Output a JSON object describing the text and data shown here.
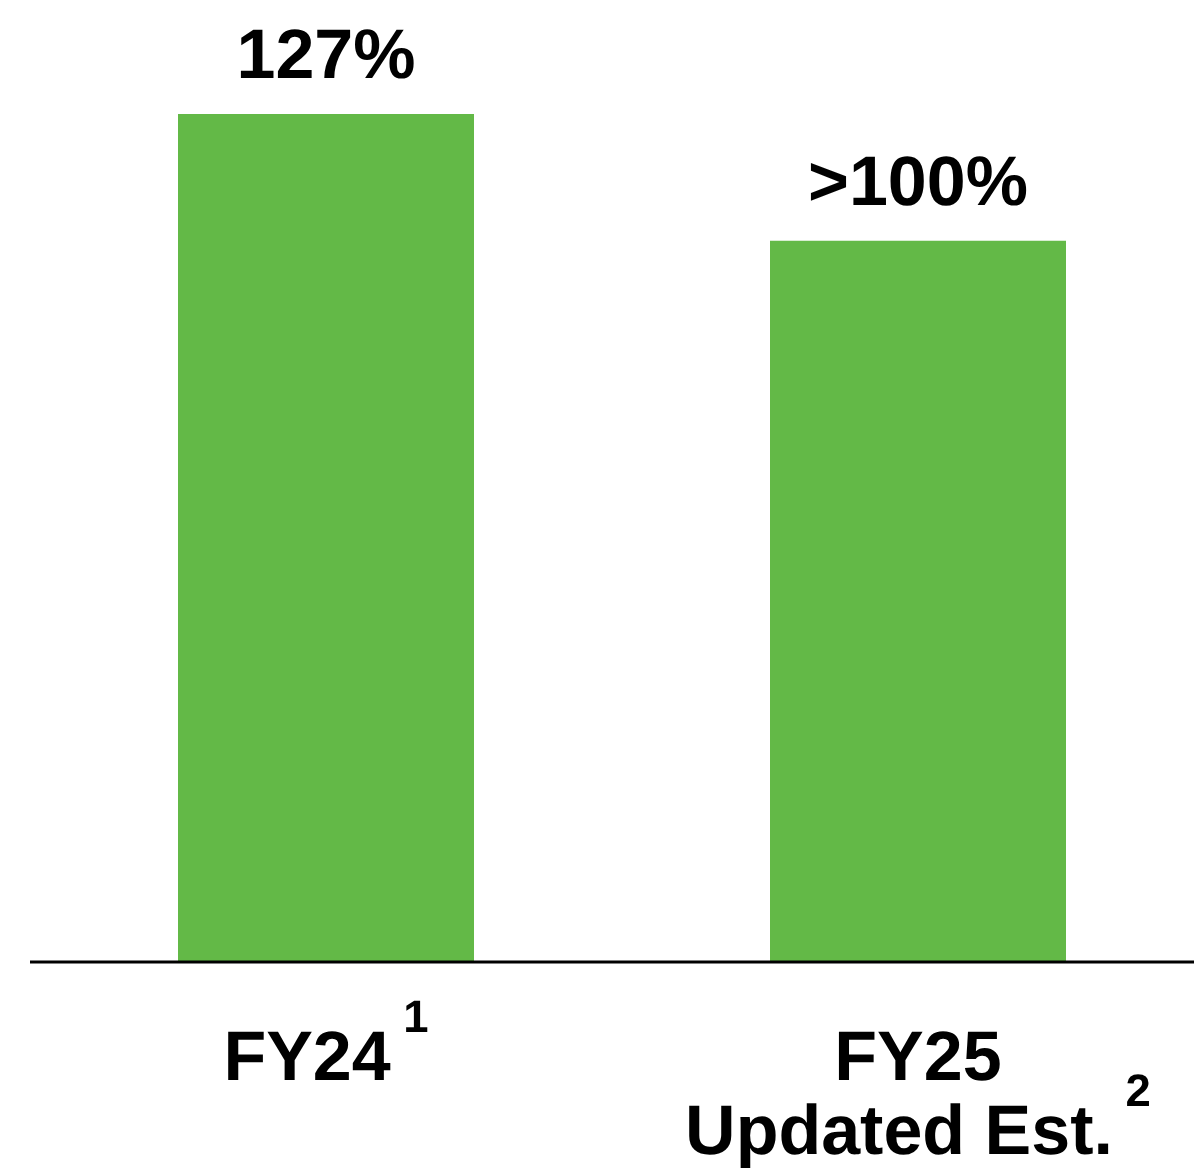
{
  "chart_data": {
    "type": "bar",
    "categories": [
      "FY24$^{1}$",
      "FY25\nUpdated Est.$^{2}$"
    ],
    "values": [
      127,
      108
    ],
    "color": "#63b947",
    "value_labels": [
      "127%",
      ">100%"
    ]
  }
}
